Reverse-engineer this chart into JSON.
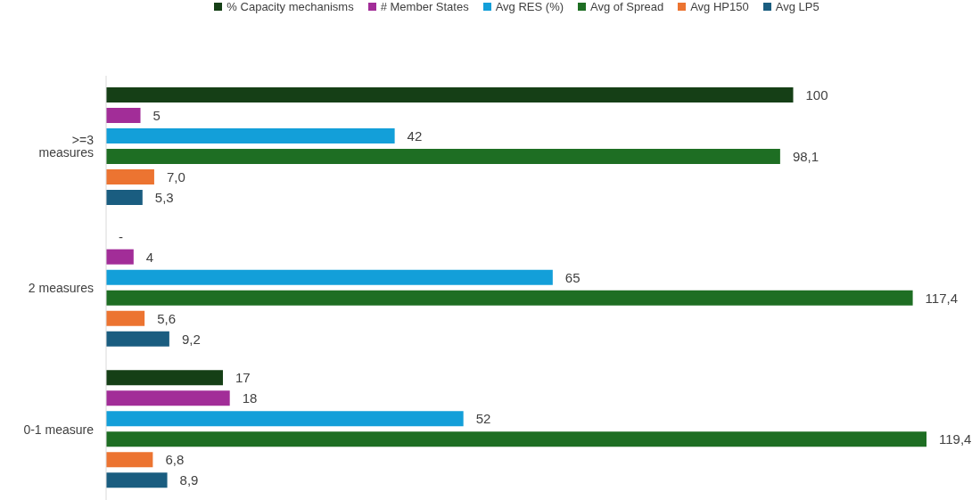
{
  "chart_data": {
    "type": "bar",
    "orientation": "horizontal",
    "categories": [
      ">=3 measures",
      "2 measures",
      "0-1 measure"
    ],
    "legend": "top",
    "series": [
      {
        "name": "% Capacity mechanisms",
        "color": "#153f16",
        "values": [
          100,
          0,
          17
        ],
        "value_labels": [
          "100",
          "-",
          "17"
        ]
      },
      {
        "name": "# Member States",
        "color": "#a22d98",
        "values": [
          5,
          4,
          18
        ],
        "value_labels": [
          "5",
          "4",
          "18"
        ]
      },
      {
        "name": "Avg RES (%)",
        "color": "#139fd9",
        "values": [
          42,
          65,
          52
        ],
        "value_labels": [
          "42",
          "65",
          "52"
        ]
      },
      {
        "name": "Avg of Spread",
        "color": "#1e6e23",
        "values": [
          98.1,
          117.4,
          119.4
        ],
        "value_labels": [
          "98,1",
          "117,4",
          "119,4"
        ]
      },
      {
        "name": "Avg HP150",
        "color": "#ec7431",
        "values": [
          7.0,
          5.6,
          6.8
        ],
        "value_labels": [
          "7,0",
          "5,6",
          "6,8"
        ]
      },
      {
        "name": "Avg LP5",
        "color": "#1a5d80",
        "values": [
          5.3,
          9.2,
          8.9
        ],
        "value_labels": [
          "5,3",
          "9,2",
          "8,9"
        ]
      }
    ]
  }
}
